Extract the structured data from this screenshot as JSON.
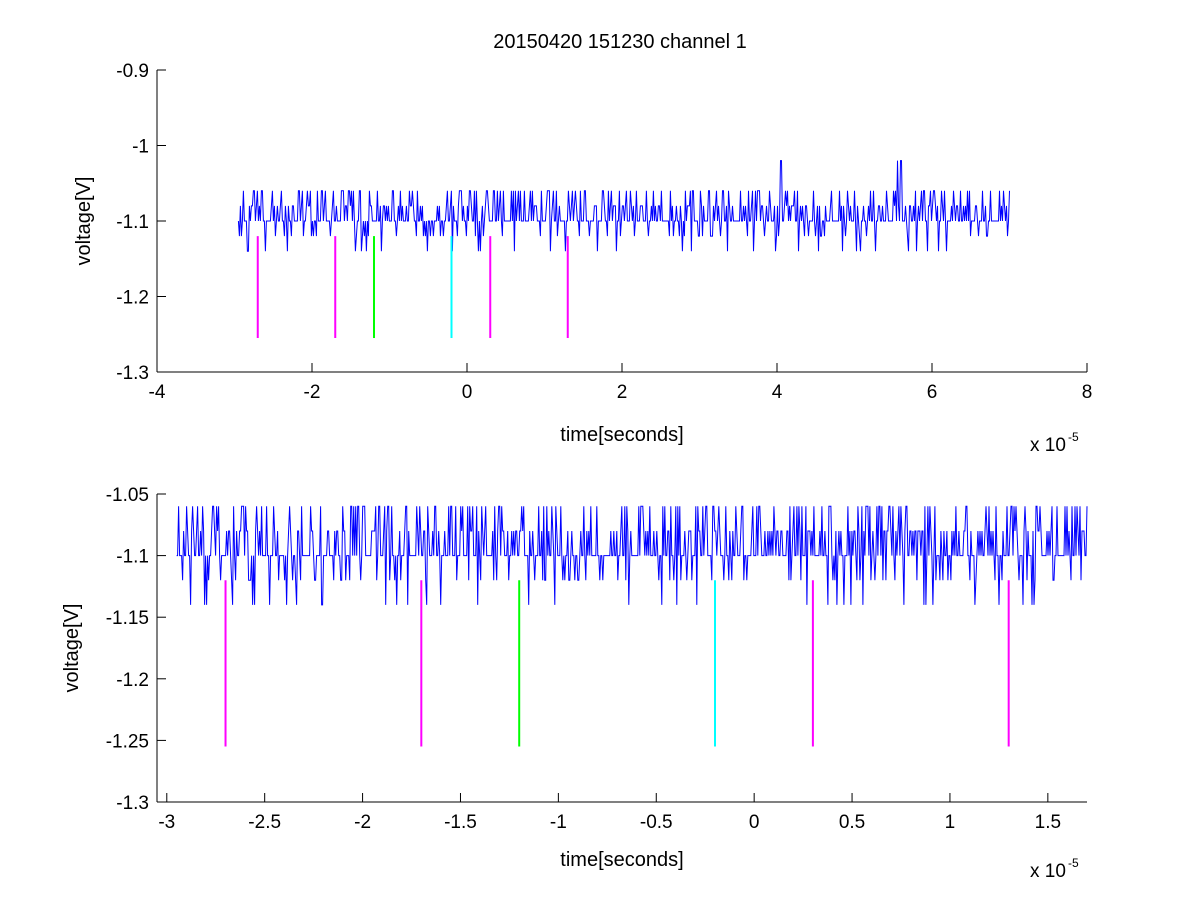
{
  "figure": {
    "title": "20150420 151230 channel 1"
  },
  "chart_data": [
    {
      "type": "line",
      "title": "20150420 151230 channel 1",
      "xlabel": "time[seconds]",
      "ylabel": "voltage[V]",
      "x_multiplier": "x 10",
      "x_exponent": "-5",
      "xlim": [
        -4,
        8
      ],
      "ylim": [
        -1.3,
        -0.9
      ],
      "xticks": [
        -4,
        -2,
        0,
        2,
        4,
        6,
        8
      ],
      "xtick_labels": [
        "-4",
        "-2",
        "0",
        "2",
        "4",
        "6",
        "8"
      ],
      "yticks": [
        -1.3,
        -1.2,
        -1.1,
        -1,
        -0.9
      ],
      "ytick_labels": [
        "-1.3",
        "-1.2",
        "-1.1",
        "-1",
        "-0.9"
      ],
      "grid": false,
      "signal": {
        "color": "#0000ff",
        "x_range": [
          -2.95,
          7.0
        ],
        "baseline": -1.1,
        "levels": [
          -1.14,
          -1.12,
          -1.1,
          -1.08,
          -1.06
        ],
        "spikes": [
          {
            "x": 4.05,
            "y": -1.02
          },
          {
            "x": 5.55,
            "y": -1.02
          },
          {
            "x": 5.6,
            "y": -1.02
          }
        ],
        "seed": 7
      },
      "markers": [
        {
          "x": -2.7,
          "y_top": -1.12,
          "y_bottom": -1.255,
          "color": "#ff00ff"
        },
        {
          "x": -1.7,
          "y_top": -1.12,
          "y_bottom": -1.255,
          "color": "#ff00ff"
        },
        {
          "x": -1.2,
          "y_top": -1.12,
          "y_bottom": -1.255,
          "color": "#00ff00"
        },
        {
          "x": -0.2,
          "y_top": -1.12,
          "y_bottom": -1.255,
          "color": "#00ffff"
        },
        {
          "x": 0.3,
          "y_top": -1.12,
          "y_bottom": -1.255,
          "color": "#ff00ff"
        },
        {
          "x": 1.3,
          "y_top": -1.12,
          "y_bottom": -1.255,
          "color": "#ff00ff"
        }
      ]
    },
    {
      "type": "line",
      "title": "",
      "xlabel": "time[seconds]",
      "ylabel": "voltage[V]",
      "x_multiplier": "x 10",
      "x_exponent": "-5",
      "xlim": [
        -3.05,
        1.7
      ],
      "ylim": [
        -1.3,
        -1.05
      ],
      "xticks": [
        -3,
        -2.5,
        -2,
        -1.5,
        -1,
        -0.5,
        0,
        0.5,
        1,
        1.5
      ],
      "xtick_labels": [
        "-3",
        "-2.5",
        "-2",
        "-1.5",
        "-1",
        "-0.5",
        "0",
        "0.5",
        "1",
        "1.5"
      ],
      "yticks": [
        -1.3,
        -1.25,
        -1.2,
        -1.15,
        -1.1,
        -1.05
      ],
      "ytick_labels": [
        "-1.3",
        "-1.25",
        "-1.2",
        "-1.15",
        "-1.1",
        "-1.05"
      ],
      "grid": false,
      "signal": {
        "color": "#0000ff",
        "x_range": [
          -2.95,
          1.7
        ],
        "baseline": -1.1,
        "levels": [
          -1.14,
          -1.12,
          -1.1,
          -1.08,
          -1.06
        ],
        "spikes": [],
        "seed": 13
      },
      "markers": [
        {
          "x": -2.7,
          "y_top": -1.12,
          "y_bottom": -1.255,
          "color": "#ff00ff"
        },
        {
          "x": -1.7,
          "y_top": -1.12,
          "y_bottom": -1.255,
          "color": "#ff00ff"
        },
        {
          "x": -1.2,
          "y_top": -1.12,
          "y_bottom": -1.255,
          "color": "#00ff00"
        },
        {
          "x": -0.2,
          "y_top": -1.12,
          "y_bottom": -1.255,
          "color": "#00ffff"
        },
        {
          "x": 0.3,
          "y_top": -1.12,
          "y_bottom": -1.255,
          "color": "#ff00ff"
        },
        {
          "x": 1.3,
          "y_top": -1.12,
          "y_bottom": -1.255,
          "color": "#ff00ff"
        }
      ]
    }
  ]
}
